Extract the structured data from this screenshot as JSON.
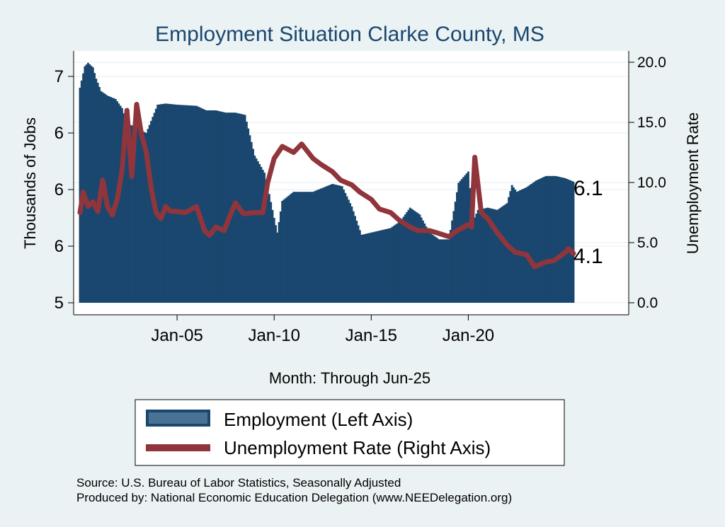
{
  "chart_data": {
    "type": "bar+line",
    "title": "Employment Situation Clarke  County, MS",
    "xlabel": "Month: Through Jun-25",
    "ylabel_left": "Thousands of Jobs",
    "ylabel_right": "Unemployment Rate",
    "x_ticks": [
      "Jan-05",
      "Jan-10",
      "Jan-15",
      "Jan-20"
    ],
    "y_left_ticks": [
      "5",
      "6",
      "6",
      "6",
      "7"
    ],
    "y_left_tick_values": [
      5.0,
      5.5,
      6.0,
      6.5,
      7.0
    ],
    "y_left_range": [
      5.0,
      7.05
    ],
    "y_right_ticks": [
      "0.0",
      "5.0",
      "10.0",
      "15.0",
      "20.0"
    ],
    "y_right_tick_values": [
      0,
      5,
      10,
      15,
      20
    ],
    "y_right_range": [
      0,
      20.5
    ],
    "grid": true,
    "x_start": "Jan-2000",
    "x_end": "Jun-2025",
    "series": [
      {
        "name": "Employment (Left Axis)",
        "axis": "left",
        "style": "bar",
        "color": "#1a476f",
        "points": [
          [
            "Jan-2000",
            6.9
          ],
          [
            "Apr-2000",
            7.09
          ],
          [
            "Jun-2000",
            7.12
          ],
          [
            "Sep-2000",
            7.08
          ],
          [
            "Nov-2000",
            6.98
          ],
          [
            "Feb-2001",
            6.87
          ],
          [
            "Jun-2001",
            6.83
          ],
          [
            "Nov-2001",
            6.8
          ],
          [
            "Mar-2002",
            6.72
          ],
          [
            "Jun-2002",
            6.58
          ],
          [
            "Jan-2003",
            6.55
          ],
          [
            "Mar-2003",
            6.52
          ],
          [
            "Jun-2003",
            6.5
          ],
          [
            "Jan-2004",
            6.75
          ],
          [
            "Jun-2004",
            6.76
          ],
          [
            "Jan-2005",
            6.75
          ],
          [
            "Jan-2006",
            6.74
          ],
          [
            "Jul-2006",
            6.7
          ],
          [
            "Jan-2007",
            6.7
          ],
          [
            "Jul-2007",
            6.68
          ],
          [
            "Jan-2008",
            6.68
          ],
          [
            "Jul-2008",
            6.66
          ],
          [
            "Jan-2009",
            6.3
          ],
          [
            "Jul-2009",
            6.15
          ],
          [
            "Sep-2009",
            6.03
          ],
          [
            "Jan-2010",
            5.75
          ],
          [
            "Mar-2010",
            5.62
          ],
          [
            "Jun-2010",
            5.9
          ],
          [
            "Jan-2011",
            5.98
          ],
          [
            "Jan-2012",
            5.98
          ],
          [
            "Jan-2013",
            6.05
          ],
          [
            "Jul-2013",
            6.03
          ],
          [
            "Jan-2014",
            5.85
          ],
          [
            "Jul-2014",
            5.6
          ],
          [
            "Jan-2015",
            5.62
          ],
          [
            "Jan-2016",
            5.66
          ],
          [
            "Jul-2016",
            5.72
          ],
          [
            "Jan-2017",
            5.84
          ],
          [
            "Jul-2017",
            5.78
          ],
          [
            "Jan-2018",
            5.62
          ],
          [
            "Jul-2018",
            5.56
          ],
          [
            "Jan-2019",
            5.56
          ],
          [
            "Jul-2019",
            6.06
          ],
          [
            "Jan-2020",
            6.16
          ],
          [
            "Apr-2020",
            5.72
          ],
          [
            "Jul-2020",
            5.82
          ],
          [
            "Jan-2021",
            5.84
          ],
          [
            "Jul-2021",
            5.82
          ],
          [
            "Jan-2022",
            5.88
          ],
          [
            "Apr-2022",
            6.04
          ],
          [
            "Jul-2022",
            5.98
          ],
          [
            "Jan-2023",
            6.02
          ],
          [
            "Jul-2023",
            6.08
          ],
          [
            "Jan-2024",
            6.12
          ],
          [
            "Jul-2024",
            6.12
          ],
          [
            "Jan-2025",
            6.1
          ],
          [
            "Jun-2025",
            6.07
          ]
        ]
      },
      {
        "name": "Unemployment Rate (Right Axis)",
        "axis": "right",
        "style": "line",
        "color": "#90353b",
        "points": [
          [
            "Jan-2000",
            7.5
          ],
          [
            "Mar-2000",
            9.2
          ],
          [
            "Jun-2000",
            8.0
          ],
          [
            "Sep-2000",
            8.4
          ],
          [
            "Dec-2000",
            7.6
          ],
          [
            "Mar-2001",
            10.2
          ],
          [
            "Jun-2001",
            8.0
          ],
          [
            "Sep-2001",
            7.3
          ],
          [
            "Dec-2001",
            8.6
          ],
          [
            "Mar-2002",
            11.0
          ],
          [
            "Jun-2002",
            16.0
          ],
          [
            "Sep-2002",
            10.5
          ],
          [
            "Dec-2002",
            16.5
          ],
          [
            "Mar-2003",
            14.0
          ],
          [
            "Jun-2003",
            12.5
          ],
          [
            "Sep-2003",
            9.5
          ],
          [
            "Dec-2003",
            7.5
          ],
          [
            "Mar-2004",
            7.0
          ],
          [
            "Jun-2004",
            8.0
          ],
          [
            "Sep-2004",
            7.6
          ],
          [
            "Jan-2005",
            7.6
          ],
          [
            "Jun-2005",
            7.5
          ],
          [
            "Jan-2006",
            8.0
          ],
          [
            "Jun-2006",
            6.0
          ],
          [
            "Sep-2006",
            5.6
          ],
          [
            "Jan-2007",
            6.3
          ],
          [
            "Jun-2007",
            6.0
          ],
          [
            "Jan-2008",
            8.3
          ],
          [
            "Jun-2008",
            7.4
          ],
          [
            "Jan-2009",
            7.5
          ],
          [
            "Jun-2009",
            7.5
          ],
          [
            "Sep-2009",
            10.0
          ],
          [
            "Jan-2010",
            12.0
          ],
          [
            "Jun-2010",
            13.0
          ],
          [
            "Jan-2011",
            12.5
          ],
          [
            "Jun-2011",
            13.2
          ],
          [
            "Jan-2012",
            12.0
          ],
          [
            "Jun-2012",
            11.5
          ],
          [
            "Jan-2013",
            10.9
          ],
          [
            "Jun-2013",
            10.2
          ],
          [
            "Jan-2014",
            9.8
          ],
          [
            "Jun-2014",
            9.2
          ],
          [
            "Jan-2015",
            8.6
          ],
          [
            "Jun-2015",
            7.8
          ],
          [
            "Jan-2016",
            7.5
          ],
          [
            "Jun-2016",
            6.9
          ],
          [
            "Jan-2017",
            6.3
          ],
          [
            "Jun-2017",
            6.0
          ],
          [
            "Jan-2018",
            6.0
          ],
          [
            "Jun-2018",
            5.8
          ],
          [
            "Jan-2019",
            5.5
          ],
          [
            "Jun-2019",
            6.0
          ],
          [
            "Jan-2020",
            6.5
          ],
          [
            "Mar-2020",
            6.3
          ],
          [
            "May-2020",
            12.1
          ],
          [
            "Sep-2020",
            7.5
          ],
          [
            "Jan-2021",
            7.0
          ],
          [
            "Jun-2021",
            6.0
          ],
          [
            "Jan-2022",
            4.8
          ],
          [
            "Jun-2022",
            4.2
          ],
          [
            "Jan-2023",
            4.0
          ],
          [
            "Jun-2023",
            3.0
          ],
          [
            "Jan-2024",
            3.4
          ],
          [
            "Jun-2024",
            3.5
          ],
          [
            "Jan-2025",
            4.2
          ],
          [
            "Mar-2025",
            4.5
          ],
          [
            "Jun-2025",
            4.1
          ]
        ]
      }
    ],
    "end_labels": {
      "employment": "6.1",
      "unemployment": "4.1"
    }
  },
  "legend": {
    "items": [
      {
        "label": "Employment (Left Axis)",
        "color": "#1a476f"
      },
      {
        "label": "Unemployment Rate (Right Axis)",
        "color": "#90353b"
      }
    ]
  },
  "notes": {
    "source": "Source: U.S. Bureau of Labor Statistics, Seasonally Adjusted",
    "produced": "Produced by: National Economic Education Delegation (www.NEEDelegation.org)"
  }
}
